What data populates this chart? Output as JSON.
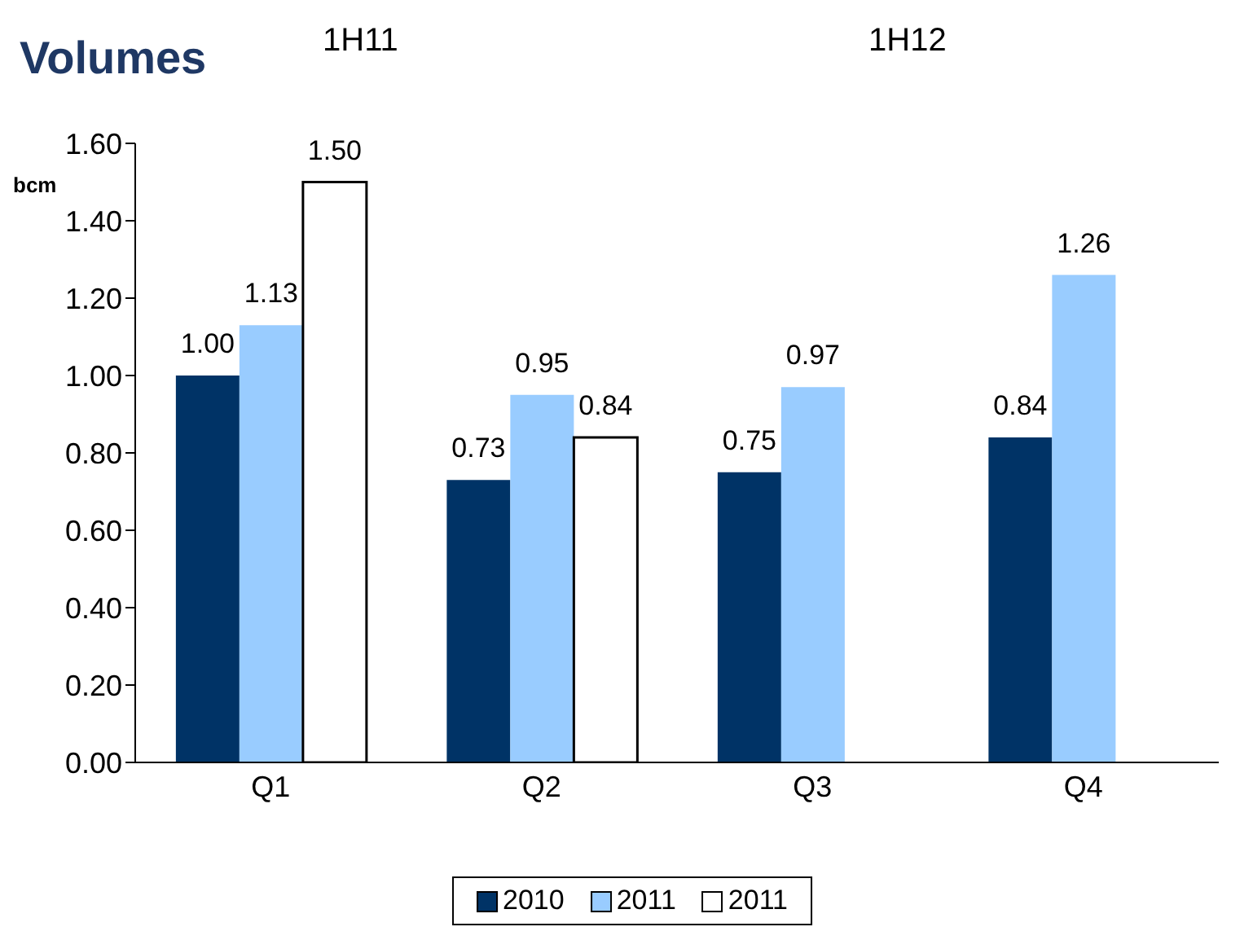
{
  "chart_data": {
    "type": "bar",
    "title": "Volumes",
    "ylabel": "bcm",
    "annotations": [
      "1H11",
      "1H12"
    ],
    "categories": [
      "Q1",
      "Q2",
      "Q3",
      "Q4"
    ],
    "series": [
      {
        "name": "2010",
        "color": "#003366",
        "values": [
          1.0,
          0.73,
          0.75,
          0.84
        ],
        "value_labels": [
          "1.00",
          "0.73",
          "0.75",
          "0.84"
        ]
      },
      {
        "name": "2011",
        "color": "#99ccff",
        "values": [
          1.13,
          0.95,
          0.97,
          1.26
        ],
        "value_labels": [
          "1.13",
          "0.95",
          "0.97",
          "1.26"
        ]
      },
      {
        "name": "2011",
        "color": "#ffffff",
        "values": [
          1.5,
          0.84,
          null,
          null
        ],
        "value_labels": [
          "1.50",
          "0.84",
          null,
          null
        ]
      }
    ],
    "ylim": [
      0,
      1.6
    ],
    "yticks": [
      {
        "value": 0,
        "label": "0.00"
      },
      {
        "value": 0.2,
        "label": "0.20"
      },
      {
        "value": 0.4,
        "label": "0.40"
      },
      {
        "value": 0.6,
        "label": "0.60"
      },
      {
        "value": 0.8,
        "label": "0.80"
      },
      {
        "value": 1,
        "label": "1.00"
      },
      {
        "value": 1.2,
        "label": "1.20"
      },
      {
        "value": 1.4,
        "label": "1.40"
      },
      {
        "value": 1.6,
        "label": "1.60"
      }
    ],
    "legend": "bottom"
  }
}
